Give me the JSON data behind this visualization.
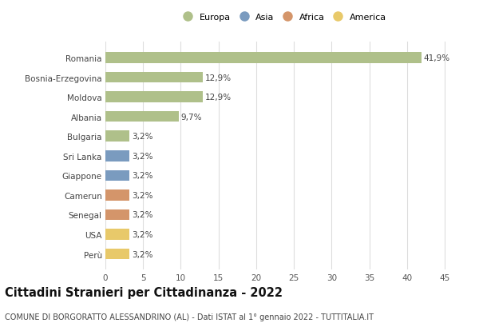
{
  "countries": [
    "Romania",
    "Bosnia-Erzegovina",
    "Moldova",
    "Albania",
    "Bulgaria",
    "Sri Lanka",
    "Giappone",
    "Camerun",
    "Senegal",
    "USA",
    "Perù"
  ],
  "values": [
    41.9,
    12.9,
    12.9,
    9.7,
    3.2,
    3.2,
    3.2,
    3.2,
    3.2,
    3.2,
    3.2
  ],
  "continents": [
    "Europa",
    "Europa",
    "Europa",
    "Europa",
    "Europa",
    "Asia",
    "Asia",
    "Africa",
    "Africa",
    "America",
    "America"
  ],
  "colors": {
    "Europa": "#afc08a",
    "Asia": "#7a9bbf",
    "Africa": "#d4956a",
    "America": "#e8c96a"
  },
  "legend_order": [
    "Europa",
    "Asia",
    "Africa",
    "America"
  ],
  "title": "Cittadini Stranieri per Cittadinanza - 2022",
  "subtitle": "COMUNE DI BORGORATTO ALESSANDRINO (AL) - Dati ISTAT al 1° gennaio 2022 - TUTTITALIA.IT",
  "xlim": [
    0,
    47
  ],
  "xticks": [
    0,
    5,
    10,
    15,
    20,
    25,
    30,
    35,
    40,
    45
  ],
  "background_color": "#ffffff",
  "bar_height": 0.55,
  "grid_color": "#dddddd",
  "label_fontsize": 7.5,
  "tick_fontsize": 7.5,
  "title_fontsize": 10.5,
  "subtitle_fontsize": 7.0,
  "legend_fontsize": 8.0
}
